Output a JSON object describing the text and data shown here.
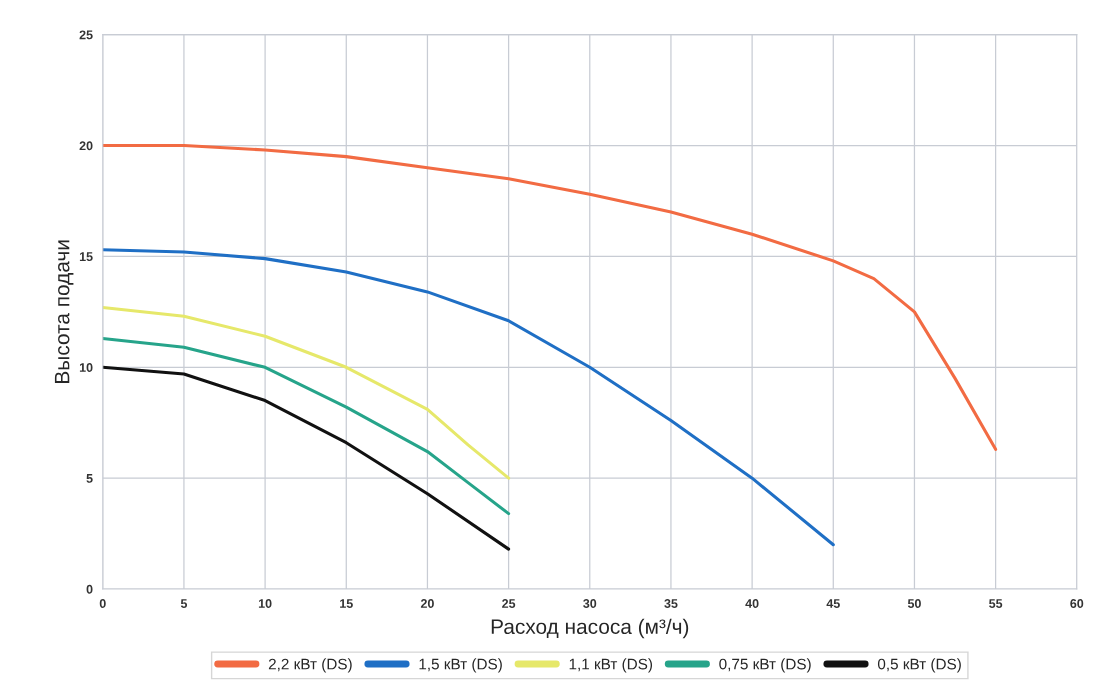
{
  "chart_data": {
    "type": "line",
    "xlabel": "Расход насоса (м³/ч)",
    "ylabel": "Высота подачи",
    "xlim": [
      0,
      60
    ],
    "xticks": [
      0,
      5,
      10,
      15,
      20,
      25,
      30,
      35,
      40,
      45,
      50,
      55,
      60
    ],
    "ylim": [
      0,
      25
    ],
    "yticks": [
      0,
      5,
      10,
      15,
      20,
      25
    ],
    "grid": true,
    "legend": "bottom",
    "marker": "none",
    "line_style": "solid",
    "series": [
      {
        "name": "2,2 кВт (DS)",
        "color": "#f26b43",
        "x": [
          0,
          5,
          10,
          15,
          20,
          25,
          30,
          35,
          40,
          45,
          47.5,
          50,
          52.5,
          55
        ],
        "values": [
          20,
          20,
          19.8,
          19.5,
          19,
          18.5,
          17.8,
          17,
          16,
          14.8,
          14,
          12.5,
          9.5,
          6.3
        ]
      },
      {
        "name": "1,5 кВт (DS)",
        "color": "#1f6fc5",
        "x": [
          0,
          5,
          10,
          15,
          20,
          25,
          30,
          35,
          40,
          45
        ],
        "values": [
          15.3,
          15.2,
          14.9,
          14.3,
          13.4,
          12.1,
          10,
          7.6,
          5,
          2
        ]
      },
      {
        "name": "1,1 кВт (DS)",
        "color": "#e6e86a",
        "x": [
          0,
          5,
          10,
          15,
          20,
          22.5,
          25
        ],
        "values": [
          12.7,
          12.3,
          11.4,
          10,
          8.1,
          6.5,
          5
        ]
      },
      {
        "name": "0,75 кВт (DS)",
        "color": "#26a48a",
        "x": [
          0,
          5,
          10,
          15,
          20,
          22.5,
          25
        ],
        "values": [
          11.3,
          10.9,
          10,
          8.2,
          6.2,
          4.8,
          3.4
        ]
      },
      {
        "name": "0,5 кВт (DS)",
        "color": "#111111",
        "x": [
          0,
          5,
          10,
          15,
          20,
          25
        ],
        "values": [
          10,
          9.7,
          8.5,
          6.6,
          4.3,
          1.8
        ]
      }
    ]
  }
}
